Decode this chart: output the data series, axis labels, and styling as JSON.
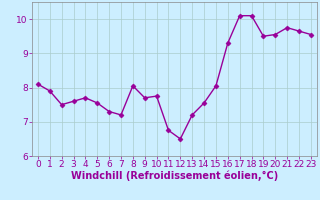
{
  "x": [
    0,
    1,
    2,
    3,
    4,
    5,
    6,
    7,
    8,
    9,
    10,
    11,
    12,
    13,
    14,
    15,
    16,
    17,
    18,
    19,
    20,
    21,
    22,
    23
  ],
  "y": [
    8.1,
    7.9,
    7.5,
    7.6,
    7.7,
    7.55,
    7.3,
    7.2,
    8.05,
    7.7,
    7.75,
    6.75,
    6.5,
    7.2,
    7.55,
    8.05,
    9.3,
    10.1,
    10.1,
    9.5,
    9.55,
    9.75,
    9.65,
    9.55
  ],
  "line_color": "#990099",
  "marker": "D",
  "marker_size": 2.5,
  "bg_color": "#cceeff",
  "grid_color": "#aacccc",
  "xlabel": "Windchill (Refroidissement éolien,°C)",
  "xlabel_color": "#990099",
  "tick_color": "#990099",
  "ylim": [
    6,
    10.5
  ],
  "xlim": [
    -0.5,
    23.5
  ],
  "yticks": [
    6,
    7,
    8,
    9,
    10
  ],
  "xticks": [
    0,
    1,
    2,
    3,
    4,
    5,
    6,
    7,
    8,
    9,
    10,
    11,
    12,
    13,
    14,
    15,
    16,
    17,
    18,
    19,
    20,
    21,
    22,
    23
  ],
  "tick_fontsize": 6.5,
  "xlabel_fontsize": 7.0,
  "linewidth": 1.0,
  "spine_color": "#888888"
}
